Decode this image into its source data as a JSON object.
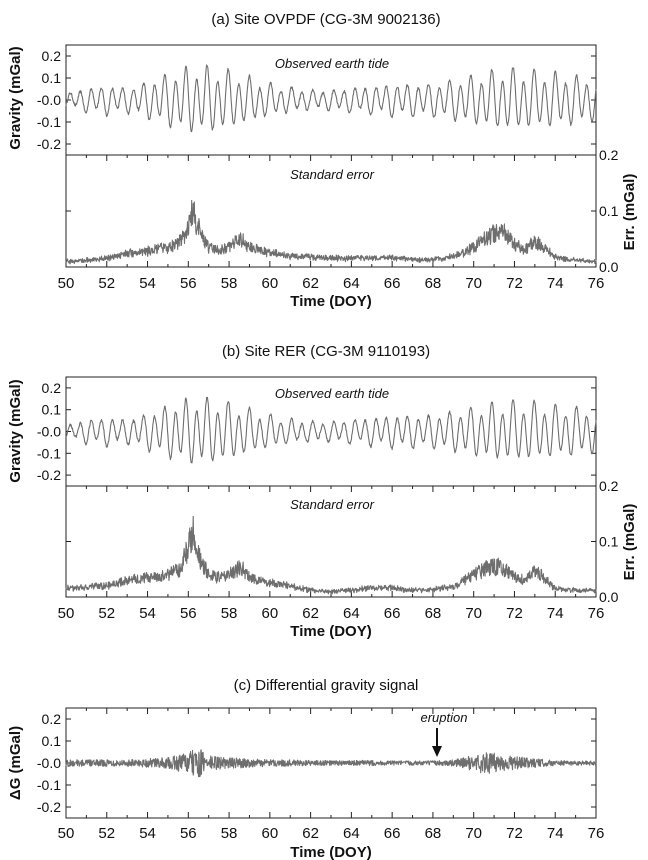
{
  "chart_data": [
    {
      "panel": "a",
      "type": "line",
      "title": "(a) Site OVPDF (CG-3M 9002136)",
      "top": {
        "annotation": "Observed earth tide",
        "ylabel": "Gravity (mGal)",
        "ylim": [
          -0.25,
          0.25
        ],
        "yticks": [
          "0.2",
          "0.1",
          "-0.0",
          "-0.1",
          "-0.2"
        ],
        "series": [
          {
            "x": [
              50,
              51,
              52,
              53,
              54,
              55,
              56,
              57,
              58,
              59,
              60,
              61,
              62,
              63,
              64,
              65,
              66,
              67,
              68,
              69,
              70,
              71,
              72,
              73,
              74,
              75,
              76
            ],
            "amplitude": [
              0.03,
              0.06,
              0.07,
              0.06,
              0.09,
              0.13,
              0.16,
              0.16,
              0.14,
              0.11,
              0.08,
              0.06,
              0.05,
              0.05,
              0.06,
              0.07,
              0.08,
              0.08,
              0.08,
              0.1,
              0.12,
              0.14,
              0.15,
              0.14,
              0.13,
              0.12,
              0.1
            ]
          }
        ]
      },
      "bottom": {
        "annotation": "Standard error",
        "ylabel": "Err. (mGal)",
        "ylim": [
          0,
          0.2
        ],
        "yticks": [
          "0.0",
          "0.1",
          "0.2"
        ],
        "series": [
          {
            "x": [
              50,
              51,
              52,
              53,
              54,
              55,
              55.6,
              56,
              56.2,
              56.6,
              57,
              57.5,
              58,
              58.4,
              58.6,
              59,
              60,
              61,
              62,
              63,
              64,
              65,
              66,
              67,
              68,
              69,
              70,
              70.5,
              71,
              71.2,
              71.5,
              72,
              72.5,
              73,
              73.3,
              74,
              75,
              76
            ],
            "y": [
              0.01,
              0.012,
              0.015,
              0.025,
              0.028,
              0.035,
              0.045,
              0.07,
              0.1,
              0.06,
              0.035,
              0.03,
              0.035,
              0.048,
              0.05,
              0.035,
              0.025,
              0.02,
              0.018,
              0.016,
              0.015,
              0.017,
              0.016,
              0.013,
              0.013,
              0.018,
              0.035,
              0.05,
              0.06,
              0.065,
              0.06,
              0.04,
              0.03,
              0.045,
              0.04,
              0.018,
              0.012,
              0.01
            ]
          }
        ]
      },
      "xlabel": "Time (DOY)",
      "xlim": [
        50,
        76
      ],
      "xticks": [
        "50",
        "52",
        "54",
        "56",
        "58",
        "60",
        "62",
        "64",
        "66",
        "68",
        "70",
        "72",
        "74",
        "76"
      ]
    },
    {
      "panel": "b",
      "type": "line",
      "title": "(b) Site RER (CG-3M 9110193)",
      "top": {
        "annotation": "Observed earth tide",
        "ylabel": "Gravity (mGal)",
        "ylim": [
          -0.25,
          0.25
        ],
        "yticks": [
          "0.2",
          "0.1",
          "-0.0",
          "-0.1",
          "-0.2"
        ],
        "series": [
          {
            "x": [
              50,
              51,
              52,
              53,
              54,
              55,
              56,
              57,
              58,
              59,
              60,
              61,
              62,
              63,
              64,
              65,
              66,
              67,
              68,
              69,
              70,
              71,
              72,
              73,
              74,
              75,
              76
            ],
            "amplitude": [
              0.03,
              0.06,
              0.07,
              0.06,
              0.09,
              0.13,
              0.16,
              0.16,
              0.14,
              0.11,
              0.08,
              0.06,
              0.05,
              0.05,
              0.06,
              0.07,
              0.08,
              0.08,
              0.08,
              0.1,
              0.12,
              0.14,
              0.15,
              0.14,
              0.13,
              0.12,
              0.1
            ]
          }
        ]
      },
      "bottom": {
        "annotation": "Standard error",
        "ylabel": "Err. (mGal)",
        "ylim": [
          0,
          0.2
        ],
        "yticks": [
          "0.0",
          "0.1",
          "0.2"
        ],
        "series": [
          {
            "x": [
              50,
              51,
              52,
              53,
              54,
              55,
              55.6,
              56,
              56.2,
              56.6,
              57,
              57.5,
              58,
              58.4,
              58.6,
              59,
              60,
              61,
              62,
              63,
              64,
              65,
              66,
              67,
              68,
              69,
              70,
              70.5,
              71,
              71.2,
              71.5,
              72,
              72.5,
              73,
              73.3,
              74,
              75,
              76
            ],
            "y": [
              0.015,
              0.018,
              0.02,
              0.03,
              0.035,
              0.04,
              0.05,
              0.09,
              0.12,
              0.065,
              0.04,
              0.035,
              0.04,
              0.05,
              0.055,
              0.035,
              0.025,
              0.02,
              0.012,
              0.01,
              0.012,
              0.018,
              0.016,
              0.012,
              0.014,
              0.018,
              0.04,
              0.05,
              0.055,
              0.055,
              0.05,
              0.035,
              0.03,
              0.045,
              0.04,
              0.015,
              0.012,
              0.012
            ]
          }
        ]
      },
      "xlabel": "Time (DOY)",
      "xlim": [
        50,
        76
      ],
      "xticks": [
        "50",
        "52",
        "54",
        "56",
        "58",
        "60",
        "62",
        "64",
        "66",
        "68",
        "70",
        "72",
        "74",
        "76"
      ]
    },
    {
      "panel": "c",
      "type": "line",
      "title": "(c) Differential gravity signal",
      "annotation": "eruption",
      "annotation_x": 68.2,
      "ylabel": "ΔG (mGal)",
      "ylim": [
        -0.25,
        0.25
      ],
      "yticks": [
        "0.2",
        "0.1",
        "-0.0",
        "-0.1",
        "-0.2"
      ],
      "series": [
        {
          "x": [
            50,
            51,
            52,
            53,
            54,
            55,
            56,
            56.5,
            57,
            58,
            59,
            60,
            61,
            62,
            63,
            64,
            65,
            66,
            67,
            68,
            69,
            70,
            70.5,
            71,
            72,
            73,
            74,
            75,
            76
          ],
          "amplitude": [
            0.015,
            0.015,
            0.015,
            0.015,
            0.02,
            0.025,
            0.05,
            0.07,
            0.035,
            0.025,
            0.02,
            0.015,
            0.015,
            0.012,
            0.012,
            0.012,
            0.012,
            0.01,
            0.01,
            0.01,
            0.015,
            0.035,
            0.05,
            0.045,
            0.03,
            0.02,
            0.012,
            0.01,
            0.01
          ]
        }
      ],
      "xlabel": "Time (DOY)",
      "xlim": [
        50,
        76
      ],
      "xticks": [
        "50",
        "52",
        "54",
        "56",
        "58",
        "60",
        "62",
        "64",
        "66",
        "68",
        "70",
        "72",
        "74",
        "76"
      ]
    }
  ]
}
